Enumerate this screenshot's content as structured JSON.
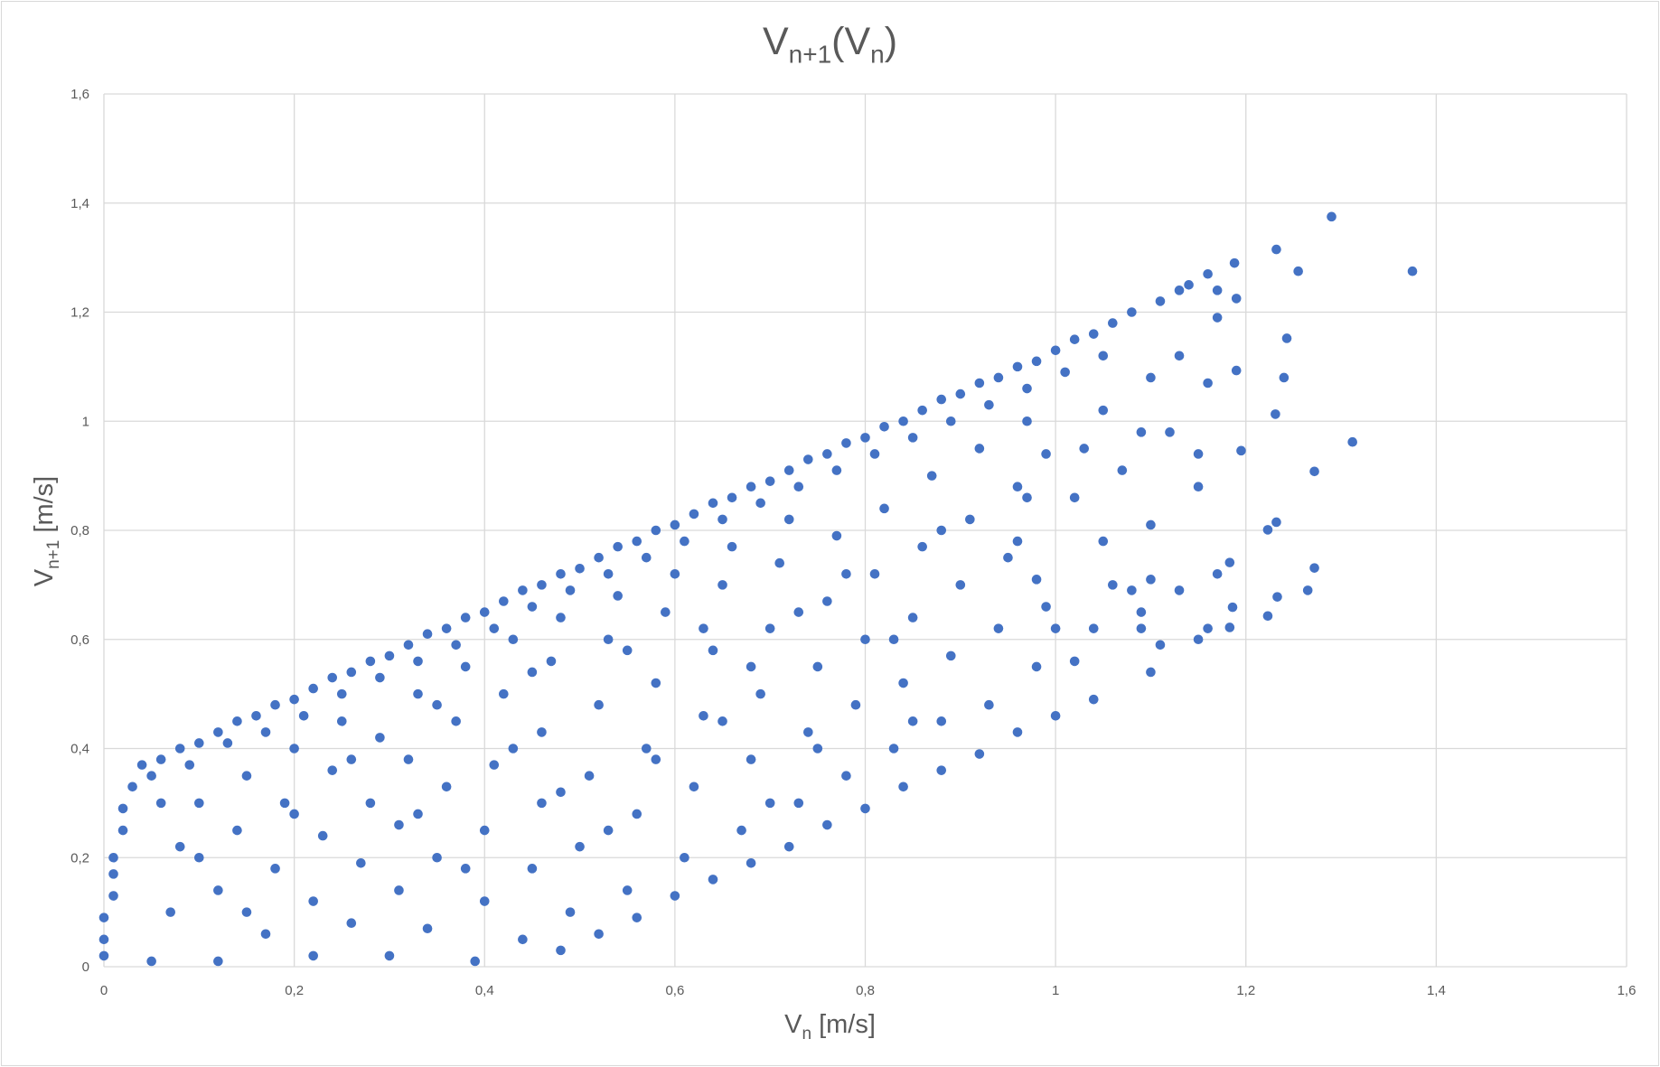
{
  "chart_data": {
    "type": "scatter",
    "title": {
      "main": "V",
      "sub1": "n+1",
      "paren_open": "(V",
      "sub2": "n",
      "paren_close": ")"
    },
    "xlabel": {
      "main": "V",
      "sub": "n",
      "unit": " [m/s]"
    },
    "ylabel": {
      "main": "V",
      "sub": "n+1",
      "unit": " [m/s]"
    },
    "xlim": [
      0,
      1.6
    ],
    "ylim": [
      0,
      1.6
    ],
    "x_ticks": [
      "0",
      "0,2",
      "0,4",
      "0,6",
      "0,8",
      "1",
      "1,2",
      "1,4",
      "1,6"
    ],
    "y_ticks": [
      "0",
      "0,2",
      "0,4",
      "0,6",
      "0,8",
      "1",
      "1,2",
      "1,4",
      "1,6"
    ],
    "grid": true,
    "legend": "none",
    "marker_color": "#4472C4",
    "points": [
      [
        0.04,
        0.37
      ],
      [
        0.06,
        0.38
      ],
      [
        0.08,
        0.4
      ],
      [
        0.1,
        0.41
      ],
      [
        0.12,
        0.43
      ],
      [
        0.14,
        0.45
      ],
      [
        0.16,
        0.46
      ],
      [
        0.18,
        0.48
      ],
      [
        0.2,
        0.49
      ],
      [
        0.22,
        0.51
      ],
      [
        0.24,
        0.53
      ],
      [
        0.26,
        0.54
      ],
      [
        0.28,
        0.56
      ],
      [
        0.3,
        0.57
      ],
      [
        0.32,
        0.59
      ],
      [
        0.34,
        0.61
      ],
      [
        0.36,
        0.62
      ],
      [
        0.38,
        0.64
      ],
      [
        0.4,
        0.65
      ],
      [
        0.42,
        0.67
      ],
      [
        0.44,
        0.69
      ],
      [
        0.46,
        0.7
      ],
      [
        0.48,
        0.72
      ],
      [
        0.5,
        0.73
      ],
      [
        0.52,
        0.75
      ],
      [
        0.54,
        0.77
      ],
      [
        0.56,
        0.78
      ],
      [
        0.58,
        0.8
      ],
      [
        0.6,
        0.81
      ],
      [
        0.62,
        0.83
      ],
      [
        0.64,
        0.85
      ],
      [
        0.66,
        0.86
      ],
      [
        0.68,
        0.88
      ],
      [
        0.7,
        0.89
      ],
      [
        0.72,
        0.91
      ],
      [
        0.74,
        0.93
      ],
      [
        0.76,
        0.94
      ],
      [
        0.78,
        0.96
      ],
      [
        0.8,
        0.97
      ],
      [
        0.82,
        0.99
      ],
      [
        0.84,
        1.0
      ],
      [
        0.86,
        1.02
      ],
      [
        0.88,
        1.04
      ],
      [
        0.9,
        1.05
      ],
      [
        0.92,
        1.07
      ],
      [
        0.94,
        1.08
      ],
      [
        0.96,
        1.1
      ],
      [
        0.98,
        1.11
      ],
      [
        1.0,
        1.13
      ],
      [
        1.02,
        1.15
      ],
      [
        1.04,
        1.16
      ],
      [
        1.06,
        1.18
      ],
      [
        1.08,
        1.2
      ],
      [
        1.11,
        1.22
      ],
      [
        1.13,
        1.24
      ],
      [
        1.14,
        1.25
      ],
      [
        1.16,
        1.27
      ],
      [
        0.05,
        0.35
      ],
      [
        0.09,
        0.37
      ],
      [
        0.13,
        0.41
      ],
      [
        0.17,
        0.43
      ],
      [
        0.21,
        0.46
      ],
      [
        0.25,
        0.5
      ],
      [
        0.29,
        0.53
      ],
      [
        0.33,
        0.56
      ],
      [
        0.37,
        0.59
      ],
      [
        0.41,
        0.62
      ],
      [
        0.45,
        0.66
      ],
      [
        0.49,
        0.69
      ],
      [
        0.53,
        0.72
      ],
      [
        0.57,
        0.75
      ],
      [
        0.61,
        0.78
      ],
      [
        0.65,
        0.82
      ],
      [
        0.69,
        0.85
      ],
      [
        0.73,
        0.88
      ],
      [
        0.77,
        0.91
      ],
      [
        0.81,
        0.94
      ],
      [
        0.85,
        0.97
      ],
      [
        0.89,
        1.0
      ],
      [
        0.93,
        1.03
      ],
      [
        0.97,
        1.06
      ],
      [
        1.01,
        1.09
      ],
      [
        1.05,
        1.12
      ],
      [
        0.48,
        0.03
      ],
      [
        0.52,
        0.06
      ],
      [
        0.56,
        0.09
      ],
      [
        0.6,
        0.13
      ],
      [
        0.64,
        0.16
      ],
      [
        0.68,
        0.19
      ],
      [
        0.72,
        0.22
      ],
      [
        0.76,
        0.26
      ],
      [
        0.8,
        0.29
      ],
      [
        0.84,
        0.33
      ],
      [
        0.88,
        0.36
      ],
      [
        0.92,
        0.39
      ],
      [
        0.96,
        0.43
      ],
      [
        1.0,
        0.46
      ],
      [
        1.04,
        0.49
      ],
      [
        0.0,
        0.02
      ],
      [
        0.0,
        0.05
      ],
      [
        0.0,
        0.09
      ],
      [
        0.01,
        0.13
      ],
      [
        0.01,
        0.17
      ],
      [
        0.01,
        0.2
      ],
      [
        0.02,
        0.25
      ],
      [
        0.02,
        0.29
      ],
      [
        0.03,
        0.33
      ],
      [
        0.05,
        0.01
      ],
      [
        0.07,
        0.1
      ],
      [
        0.08,
        0.22
      ],
      [
        0.1,
        0.3
      ],
      [
        0.12,
        0.01
      ],
      [
        0.12,
        0.14
      ],
      [
        0.14,
        0.25
      ],
      [
        0.15,
        0.35
      ],
      [
        0.17,
        0.06
      ],
      [
        0.18,
        0.18
      ],
      [
        0.19,
        0.3
      ],
      [
        0.2,
        0.4
      ],
      [
        0.22,
        0.02
      ],
      [
        0.22,
        0.12
      ],
      [
        0.23,
        0.24
      ],
      [
        0.24,
        0.36
      ],
      [
        0.25,
        0.45
      ],
      [
        0.26,
        0.08
      ],
      [
        0.27,
        0.19
      ],
      [
        0.28,
        0.3
      ],
      [
        0.29,
        0.42
      ],
      [
        0.3,
        0.02
      ],
      [
        0.31,
        0.14
      ],
      [
        0.31,
        0.26
      ],
      [
        0.32,
        0.38
      ],
      [
        0.33,
        0.5
      ],
      [
        0.34,
        0.07
      ],
      [
        0.35,
        0.2
      ],
      [
        0.36,
        0.33
      ],
      [
        0.37,
        0.45
      ],
      [
        0.38,
        0.55
      ],
      [
        0.39,
        0.01
      ],
      [
        0.4,
        0.12
      ],
      [
        0.4,
        0.25
      ],
      [
        0.41,
        0.37
      ],
      [
        0.42,
        0.5
      ],
      [
        0.43,
        0.6
      ],
      [
        0.44,
        0.05
      ],
      [
        0.45,
        0.18
      ],
      [
        0.46,
        0.3
      ],
      [
        0.46,
        0.43
      ],
      [
        0.47,
        0.56
      ],
      [
        0.48,
        0.64
      ],
      [
        0.49,
        0.1
      ],
      [
        0.5,
        0.22
      ],
      [
        0.51,
        0.35
      ],
      [
        0.52,
        0.48
      ],
      [
        0.53,
        0.6
      ],
      [
        0.54,
        0.68
      ],
      [
        0.55,
        0.14
      ],
      [
        0.56,
        0.28
      ],
      [
        0.57,
        0.4
      ],
      [
        0.58,
        0.52
      ],
      [
        0.59,
        0.65
      ],
      [
        0.6,
        0.72
      ],
      [
        0.61,
        0.2
      ],
      [
        0.62,
        0.33
      ],
      [
        0.63,
        0.46
      ],
      [
        0.64,
        0.58
      ],
      [
        0.65,
        0.7
      ],
      [
        0.66,
        0.77
      ],
      [
        0.67,
        0.25
      ],
      [
        0.68,
        0.38
      ],
      [
        0.69,
        0.5
      ],
      [
        0.7,
        0.62
      ],
      [
        0.71,
        0.74
      ],
      [
        0.72,
        0.82
      ],
      [
        0.73,
        0.3
      ],
      [
        0.74,
        0.43
      ],
      [
        0.75,
        0.55
      ],
      [
        0.76,
        0.67
      ],
      [
        0.77,
        0.79
      ],
      [
        0.78,
        0.35
      ],
      [
        0.79,
        0.48
      ],
      [
        0.8,
        0.6
      ],
      [
        0.81,
        0.72
      ],
      [
        0.82,
        0.84
      ],
      [
        0.83,
        0.4
      ],
      [
        0.84,
        0.52
      ],
      [
        0.85,
        0.64
      ],
      [
        0.86,
        0.77
      ],
      [
        0.87,
        0.9
      ],
      [
        0.88,
        0.45
      ],
      [
        0.89,
        0.57
      ],
      [
        0.9,
        0.7
      ],
      [
        0.91,
        0.82
      ],
      [
        0.92,
        0.95
      ],
      [
        0.93,
        0.48
      ],
      [
        0.94,
        0.62
      ],
      [
        0.95,
        0.75
      ],
      [
        0.96,
        0.88
      ],
      [
        0.97,
        1.0
      ],
      [
        0.98,
        0.55
      ],
      [
        0.99,
        0.66
      ],
      [
        0.1,
        0.2
      ],
      [
        0.15,
        0.1
      ],
      [
        0.2,
        0.28
      ],
      [
        0.26,
        0.38
      ],
      [
        0.33,
        0.28
      ],
      [
        0.38,
        0.18
      ],
      [
        0.43,
        0.4
      ],
      [
        0.48,
        0.32
      ],
      [
        0.53,
        0.25
      ],
      [
        0.58,
        0.38
      ],
      [
        0.63,
        0.62
      ],
      [
        0.68,
        0.55
      ],
      [
        0.73,
        0.65
      ],
      [
        0.78,
        0.72
      ],
      [
        0.83,
        0.6
      ],
      [
        0.88,
        0.8
      ],
      [
        0.06,
        0.3
      ],
      [
        0.35,
        0.48
      ],
      [
        0.45,
        0.54
      ],
      [
        0.55,
        0.58
      ],
      [
        0.65,
        0.45
      ],
      [
        0.75,
        0.4
      ],
      [
        0.85,
        0.45
      ],
      [
        0.7,
        0.3
      ],
      [
        1.1,
        0.54
      ],
      [
        1.09,
        0.62
      ],
      [
        1.08,
        0.69
      ],
      [
        1.06,
        0.7
      ],
      [
        1.1,
        0.81
      ],
      [
        1.07,
        0.91
      ],
      [
        1.09,
        0.98
      ],
      [
        1.12,
        0.98
      ],
      [
        1.15,
        0.88
      ],
      [
        1.15,
        0.94
      ],
      [
        1.16,
        1.07
      ],
      [
        1.13,
        1.12
      ],
      [
        1.1,
        1.08
      ],
      [
        1.05,
        1.02
      ],
      [
        1.03,
        0.95
      ],
      [
        1.02,
        0.86
      ],
      [
        1.05,
        0.78
      ],
      [
        1.04,
        0.62
      ],
      [
        1.02,
        0.56
      ],
      [
        1.15,
        0.6
      ],
      [
        1.16,
        0.62
      ],
      [
        1.13,
        0.69
      ],
      [
        1.17,
        0.72
      ],
      [
        1.1,
        0.71
      ],
      [
        1.11,
        0.59
      ],
      [
        1.09,
        0.65
      ],
      [
        1.0,
        0.62
      ],
      [
        0.98,
        0.71
      ],
      [
        0.97,
        0.86
      ],
      [
        0.99,
        0.94
      ],
      [
        0.96,
        0.78
      ],
      [
        1.29,
        1.375
      ],
      [
        1.375,
        1.275
      ],
      [
        1.232,
        1.315
      ],
      [
        1.255,
        1.275
      ],
      [
        1.188,
        1.29
      ],
      [
        1.312,
        0.962
      ],
      [
        1.272,
        0.908
      ],
      [
        1.243,
        1.152
      ],
      [
        1.24,
        1.08
      ],
      [
        1.231,
        1.013
      ],
      [
        1.195,
        0.946
      ],
      [
        1.232,
        0.815
      ],
      [
        1.223,
        0.801
      ],
      [
        1.272,
        0.731
      ],
      [
        1.265,
        0.69
      ],
      [
        1.233,
        0.678
      ],
      [
        1.223,
        0.643
      ],
      [
        1.183,
        0.741
      ],
      [
        1.186,
        0.659
      ],
      [
        1.183,
        0.622
      ],
      [
        1.19,
        1.093
      ],
      [
        1.19,
        1.225
      ],
      [
        1.17,
        1.24
      ],
      [
        1.17,
        1.19
      ]
    ]
  }
}
